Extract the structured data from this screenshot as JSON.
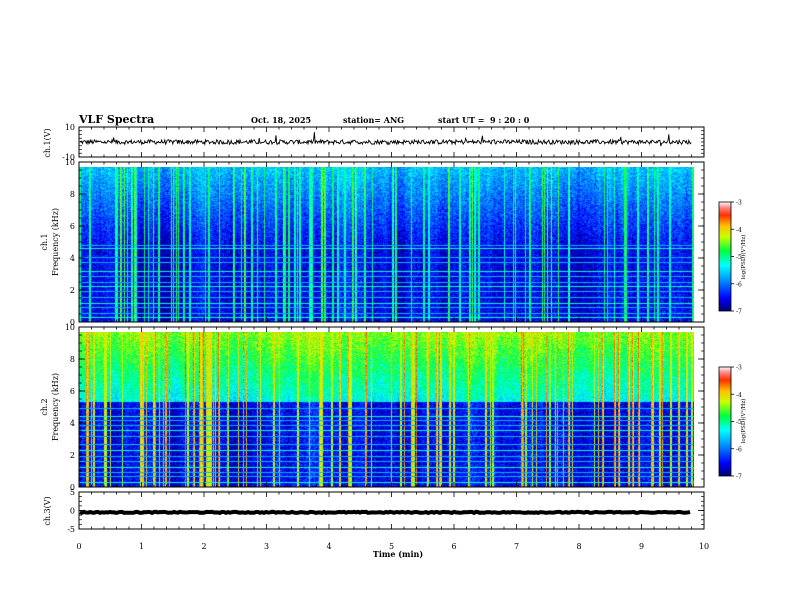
{
  "chart_data": {
    "type": "heatmap",
    "title": "VLF Spectra",
    "date": "Oct. 18, 2025",
    "station": "station= ANG",
    "start_label": "start UT =",
    "start_time": "9 : 20 : 0",
    "xlabel": "Time (min)",
    "xlim": [
      0,
      10
    ],
    "x_ticks": [
      "0",
      "1",
      "2",
      "3",
      "4",
      "5",
      "6",
      "7",
      "8",
      "9",
      "10"
    ],
    "data_end_min": 9.8,
    "panels": [
      {
        "id": "ch1-waveform",
        "type": "line",
        "ylabel": "ch.1(V)",
        "ylim": [
          -10,
          10
        ],
        "y_ticks": [
          "10",
          "-10"
        ],
        "baseline": 0,
        "amplitude": 1.5
      },
      {
        "id": "ch1-spectrogram",
        "type": "heatmap",
        "ylabel_channel": "ch.1",
        "ylabel": "Frequency (kHz)",
        "ylim": [
          0,
          10
        ],
        "y_ticks": [
          "0",
          "2",
          "4",
          "6",
          "8",
          "10"
        ],
        "background_level": -6.6,
        "noise_floor_khz": 4.8,
        "upper_band_level": -5.9,
        "spike_count": 95,
        "spike_level": -5.1,
        "hum_lines_khz": [
          0.3,
          0.6,
          1.0,
          1.2,
          1.6,
          2.0,
          2.3,
          2.6,
          3.0,
          3.3,
          3.9,
          4.2,
          4.8,
          5.0
        ],
        "colorbar": {
          "label": "log(PSD)(V²/Hz)",
          "min": -7,
          "max": -3,
          "ticks": [
            "-3",
            "-4",
            "-5",
            "-6",
            "-7"
          ]
        }
      },
      {
        "id": "ch2-spectrogram",
        "type": "heatmap",
        "ylabel_channel": "ch.2",
        "ylabel": "Frequency (kHz)",
        "ylim": [
          0,
          10
        ],
        "y_ticks": [
          "0",
          "2",
          "4",
          "6",
          "8",
          "10"
        ],
        "background_level": -6.5,
        "noise_floor_khz": 5.5,
        "upper_band_level": -4.6,
        "spike_count": 110,
        "spike_level": -4.2,
        "hum_lines_khz": [
          0.3,
          0.7,
          1.0,
          1.3,
          1.7,
          2.0,
          2.4,
          2.8,
          3.3,
          3.7,
          4.0,
          4.3,
          4.6,
          5.1
        ],
        "colorbar": {
          "label": "log(PSD)(V²/Hz)",
          "min": -7,
          "max": -3,
          "ticks": [
            "-3",
            "-4",
            "-5",
            "-6",
            "-7"
          ]
        }
      },
      {
        "id": "ch3-waveform",
        "type": "line",
        "ylabel": "ch.3(V)",
        "ylim": [
          -5,
          5
        ],
        "y_ticks": [
          "5",
          "0",
          "-5"
        ],
        "baseline": -0.5,
        "amplitude": 0.15
      }
    ]
  }
}
